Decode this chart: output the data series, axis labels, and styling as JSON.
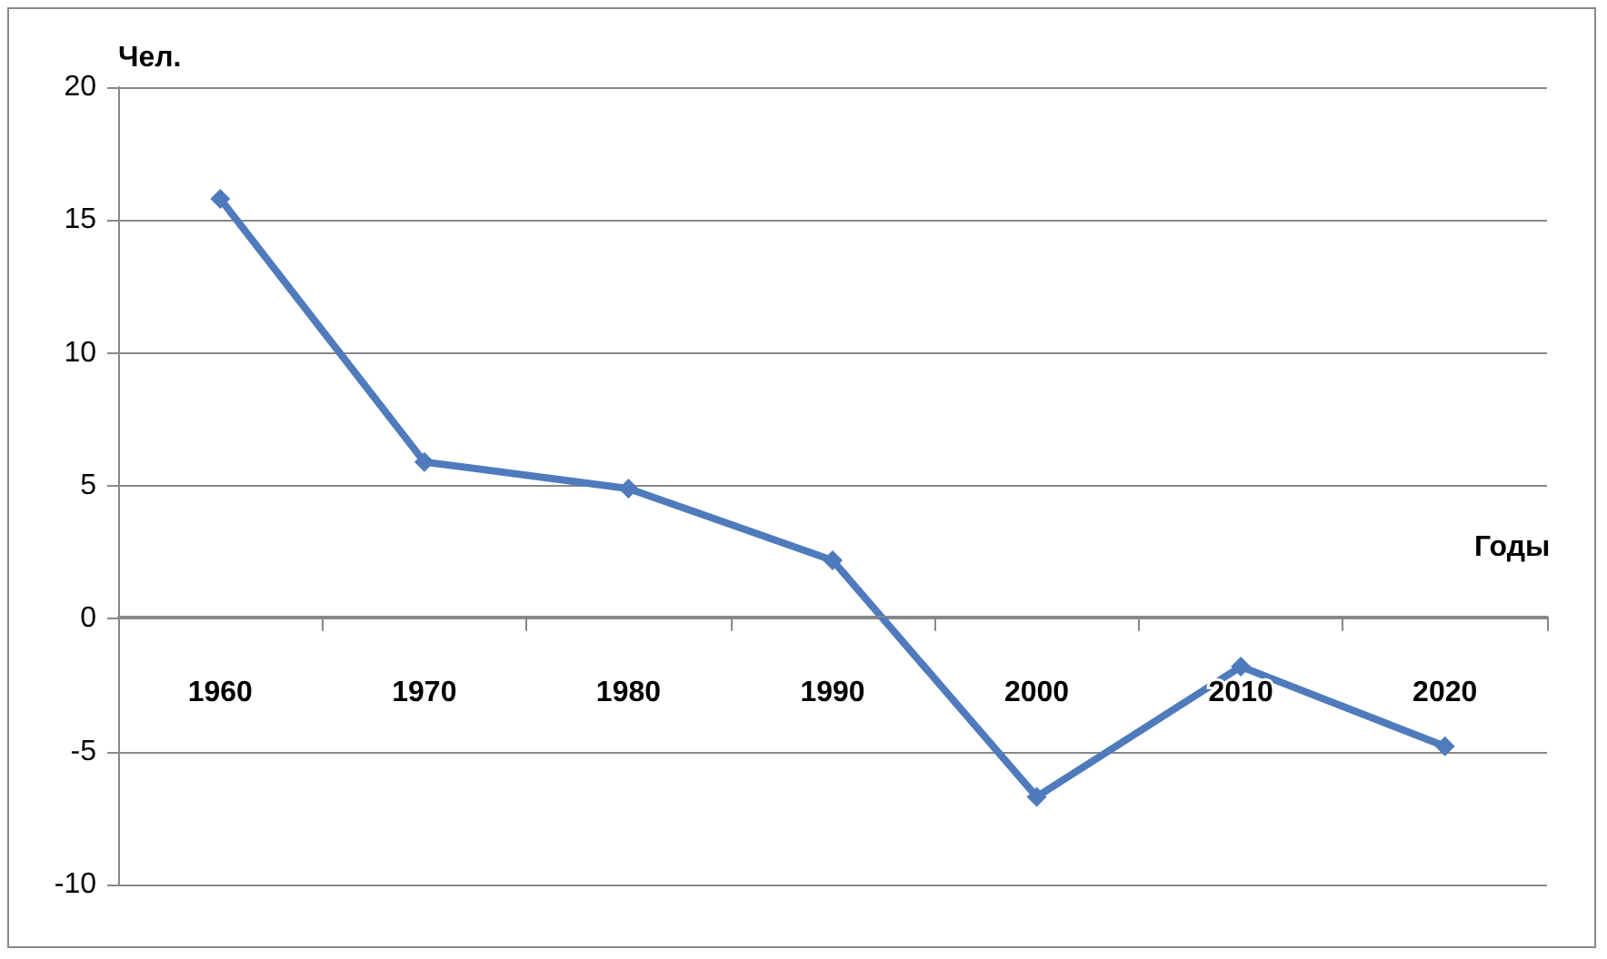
{
  "chart_data": {
    "type": "line",
    "xlabel": "Годы",
    "ylabel": "Чел.",
    "categories": [
      "1960",
      "1970",
      "1980",
      "1990",
      "2000",
      "2010",
      "2020"
    ],
    "series": [
      {
        "color": "#4f7bbd",
        "values": [
          15.8,
          5.9,
          4.9,
          2.2,
          -6.7,
          -1.8,
          -4.8
        ]
      }
    ],
    "ylim": [
      -10,
      20
    ],
    "yticks": [
      -10,
      -5,
      0,
      5,
      10,
      15,
      20
    ],
    "grid": "y",
    "marker": "diamond",
    "line_style": "solid"
  }
}
